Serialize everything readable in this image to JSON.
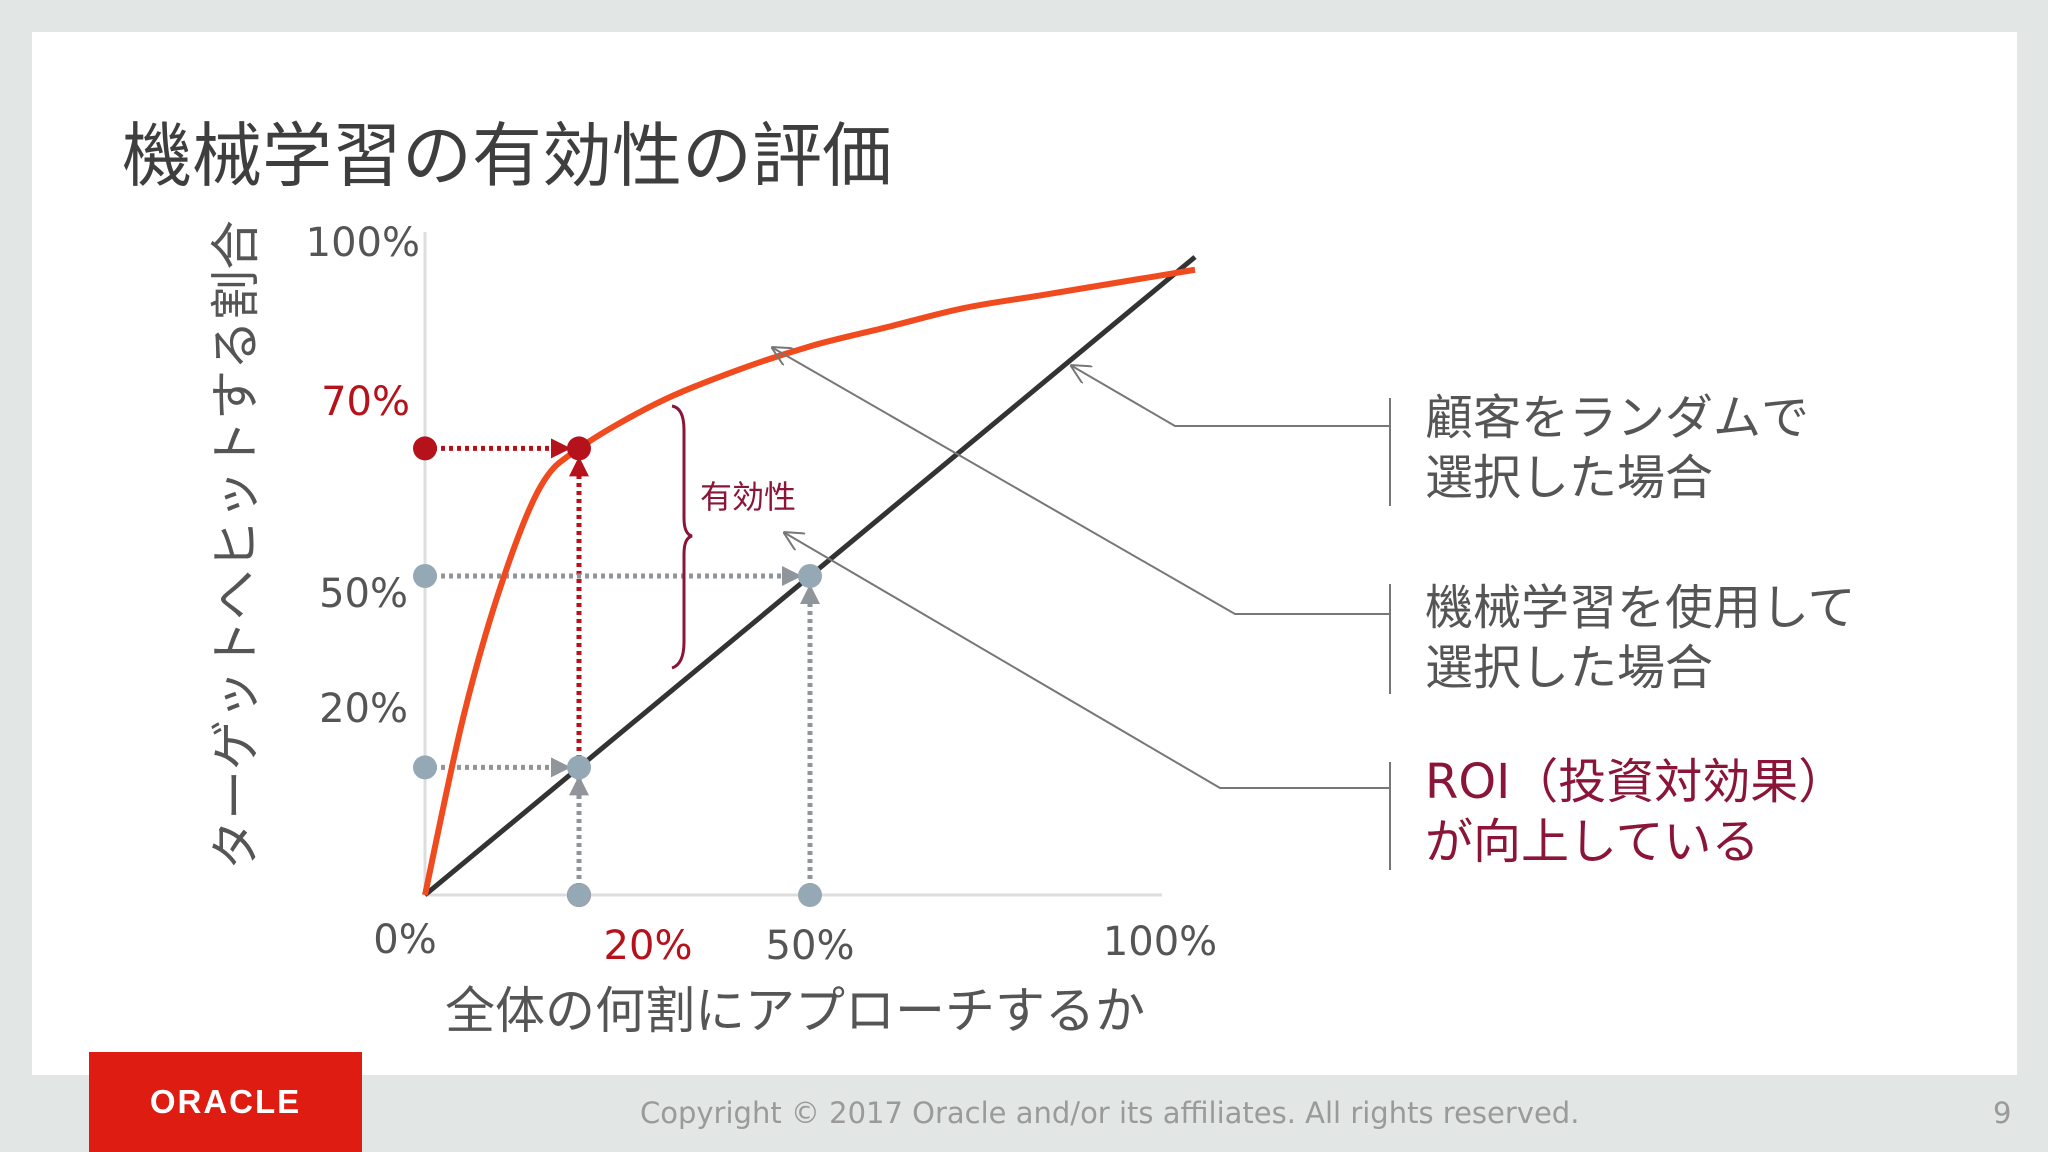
{
  "slide": {
    "title": "機械学習の有効性の評価",
    "page_number": "9",
    "copyright": "Copyright © 2017 Oracle and/or its affiliates.  All rights reserved.",
    "logo_text": "ORACLE"
  },
  "colors": {
    "ml_curve": "#f04a1f",
    "random_line": "#333333",
    "highlight": "#b5121b",
    "roi_text": "#8a1538",
    "guide_gray": "#8f959b",
    "dot_gray": "#94a9b5",
    "text_gray": "#555555"
  },
  "chart_data": {
    "type": "line",
    "xlabel": "全体の何割にアプローチするか",
    "ylabel": "ターゲットへヒットする割合",
    "xlim": [
      0,
      100
    ],
    "ylim": [
      0,
      100
    ],
    "x_ticks": [
      "0%",
      "20%",
      "50%",
      "100%"
    ],
    "y_ticks": [
      "100%",
      "70%",
      "50%",
      "20%"
    ],
    "series": [
      {
        "name": "機械学習を使用して選択した場合",
        "x": [
          0,
          5,
          10,
          15,
          20,
          30,
          40,
          50,
          60,
          70,
          80,
          90,
          100
        ],
        "y": [
          0,
          28,
          49,
          64,
          70,
          77,
          82,
          86,
          89,
          92,
          94,
          96,
          98
        ]
      },
      {
        "name": "顧客をランダムで選択した場合",
        "x": [
          0,
          100
        ],
        "y": [
          0,
          100
        ]
      }
    ],
    "highlight_points": [
      {
        "label": "20% → 70%",
        "x": 20,
        "y": 70,
        "style": "red"
      },
      {
        "label": "20% → 20%",
        "x": 20,
        "y": 20,
        "style": "gray"
      },
      {
        "label": "50% → 50%",
        "x": 50,
        "y": 50,
        "style": "gray"
      }
    ],
    "bracket_label": "有効性",
    "annotations": [
      {
        "lines": [
          "顧客をランダムで",
          "選択した場合"
        ],
        "target": "random"
      },
      {
        "lines": [
          "機械学習を使用して",
          "選択した場合"
        ],
        "target": "ml"
      },
      {
        "lines": [
          "ROI（投資対効果）",
          "が向上している"
        ],
        "target": "gap",
        "style": "roi"
      }
    ],
    "grid": false,
    "legend": "right"
  }
}
